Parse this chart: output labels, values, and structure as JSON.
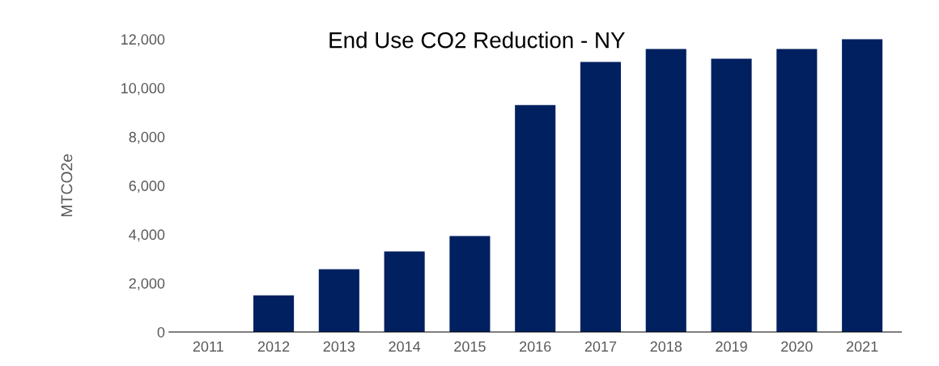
{
  "chart_data": {
    "type": "bar",
    "title": "End Use CO2 Reduction - NY",
    "ylabel": "MTCO2e",
    "categories": [
      "2011",
      "2012",
      "2013",
      "2014",
      "2015",
      "2016",
      "2017",
      "2018",
      "2019",
      "2020",
      "2021"
    ],
    "values": [
      0,
      1500,
      2570,
      3300,
      3930,
      9300,
      11070,
      11600,
      11200,
      11600,
      12000
    ],
    "color": "#002060",
    "ylim": [
      0,
      12000
    ],
    "yticks": [
      {
        "value": 0,
        "label": "0"
      },
      {
        "value": 2000,
        "label": "2,000"
      },
      {
        "value": 4000,
        "label": "4,000"
      },
      {
        "value": 6000,
        "label": "6,000"
      },
      {
        "value": 8000,
        "label": "8,000"
      },
      {
        "value": 10000,
        "label": "10,000"
      },
      {
        "value": 12000,
        "label": "12,000"
      }
    ],
    "grid": false
  }
}
